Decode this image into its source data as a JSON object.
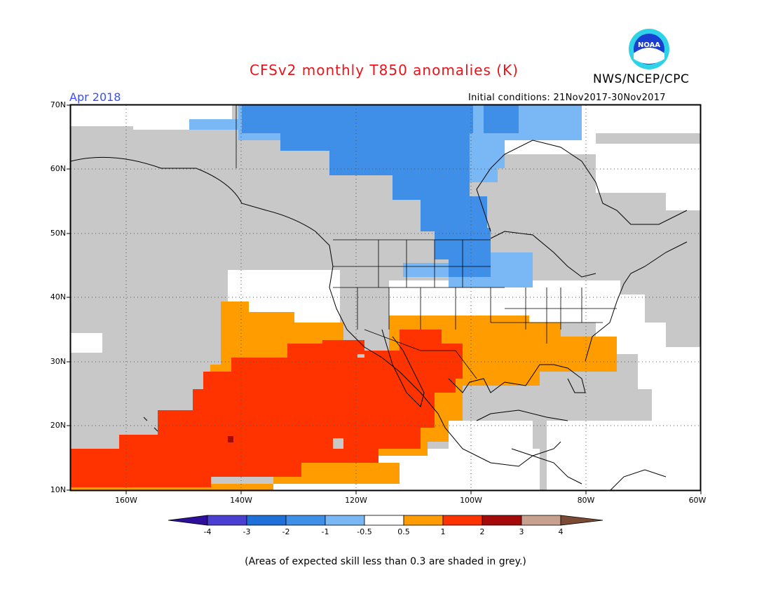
{
  "title": "CFSv2 monthly T850 anomalies (K)",
  "organization": "NWS/NCEP/CPC",
  "logo_text": "NOAA",
  "valid_month": "Apr 2018",
  "initial_conditions": "Initial conditions: 21Nov2017-30Nov2017",
  "lat_labels": [
    "70N",
    "60N",
    "50N",
    "40N",
    "30N",
    "20N",
    "10N"
  ],
  "lon_labels": [
    "160W",
    "140W",
    "120W",
    "100W",
    "80W",
    "60W"
  ],
  "colorbar": {
    "labels": [
      "-4",
      "-3",
      "-2",
      "-1",
      "-0.5",
      "0.5",
      "1",
      "2",
      "3",
      "4"
    ],
    "colors": [
      "#2d0f9c",
      "#4a3fd0",
      "#1f6fd9",
      "#3f8fe8",
      "#7ab8f5",
      "#ffffff",
      "#ff9c00",
      "#ff3300",
      "#a50a0a",
      "#c8a090",
      "#7a4a35"
    ]
  },
  "footnote": "(Areas of expected skill less than 0.3 are shaded in grey.)",
  "colors": {
    "skill_grey": "#c8c8c8",
    "cold_light": "#7ab8f5",
    "cold_mid": "#3f8fe8",
    "warm_orange": "#ff9c00",
    "warm_red": "#ff3300",
    "warm_dark": "#a50a0a"
  }
}
